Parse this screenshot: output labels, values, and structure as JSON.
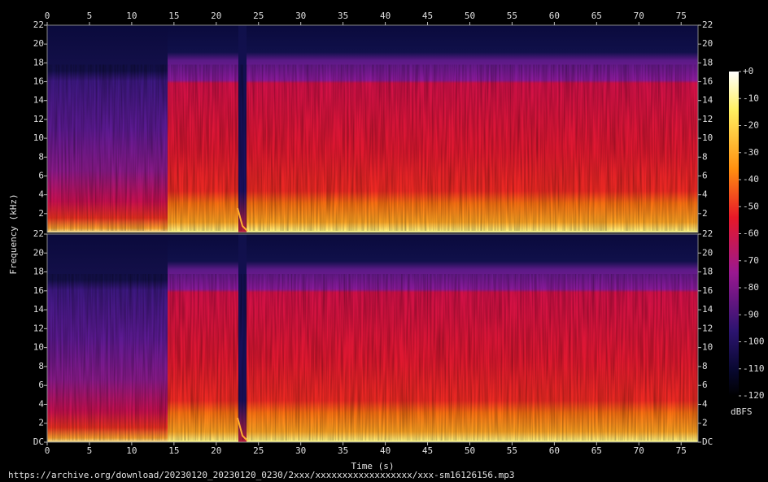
{
  "chart_data": [
    {
      "type": "spectrogram",
      "ylabel": "Frequency (kHz)",
      "xlim": [
        0,
        77
      ],
      "xticks": [
        0,
        5,
        10,
        15,
        20,
        25,
        30,
        35,
        40,
        45,
        50,
        55,
        60,
        65,
        70,
        75
      ],
      "ylim": [
        0,
        22
      ],
      "yticks": [
        2,
        4,
        6,
        8,
        10,
        12,
        14,
        16,
        18,
        20,
        22
      ]
    },
    {
      "type": "spectrogram",
      "xlabel": "Time (s)",
      "xlim": [
        0,
        77
      ],
      "xticks": [
        0,
        5,
        10,
        15,
        20,
        25,
        30,
        35,
        40,
        45,
        50,
        55,
        60,
        65,
        70,
        75
      ],
      "ylim": [
        0,
        22
      ],
      "yticks": [
        {
          "value": 0,
          "label": "DC"
        },
        2,
        4,
        6,
        8,
        10,
        12,
        14,
        16,
        18,
        20,
        22
      ]
    },
    {
      "type": "colorbar",
      "label": "dBFS",
      "ylim": [
        -120,
        0
      ],
      "yticks": [
        {
          "value": 0,
          "label": "+0"
        },
        -10,
        -20,
        -30,
        -40,
        -50,
        -60,
        -70,
        -80,
        -90,
        -100,
        -110,
        -120
      ]
    }
  ],
  "footer": {
    "url": "https://archive.org/download/20230120_20230120_0230/2xxx/xxxxxxxxxxxxxxxxxx/xxx-sm16126156.mp3"
  }
}
